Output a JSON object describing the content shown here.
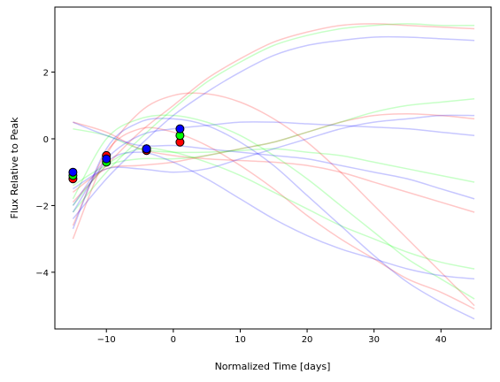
{
  "chart_data": {
    "type": "line",
    "xlabel": "Normalized Time [days]",
    "ylabel": "Flux Relative to Peak",
    "xlim": [
      -17.7,
      47.5
    ],
    "ylim": [
      -5.7,
      3.95
    ],
    "xticks": [
      {
        "value": -10,
        "label": "−10"
      },
      0,
      10,
      20,
      30,
      40
    ],
    "yticks": [
      {
        "value": -4,
        "label": "−4"
      },
      {
        "value": -2,
        "label": "−2"
      },
      0,
      2
    ],
    "line_alpha": 0.22,
    "x": [
      -15,
      -10,
      -5,
      0,
      5,
      10,
      15,
      20,
      25,
      30,
      35,
      40,
      45
    ],
    "series": [
      {
        "color": "#ff0000",
        "values": [
          -1.9,
          -0.8,
          0.2,
          1.0,
          1.8,
          2.4,
          2.9,
          3.2,
          3.4,
          3.45,
          3.4,
          3.35,
          3.3
        ]
      },
      {
        "color": "#ff0000",
        "values": [
          -3.0,
          -0.5,
          0.8,
          1.3,
          1.35,
          1.1,
          0.6,
          -0.1,
          -1.0,
          -2.0,
          -3.0,
          -4.0,
          -5.0
        ]
      },
      {
        "color": "#ff0000",
        "values": [
          -2.6,
          -0.4,
          0.3,
          0.2,
          -0.2,
          -0.8,
          -1.5,
          -2.3,
          -3.0,
          -3.6,
          -4.2,
          -4.6,
          -5.1
        ]
      },
      {
        "color": "#ff0000",
        "values": [
          -1.6,
          -0.9,
          -0.8,
          -0.7,
          -0.5,
          -0.3,
          -0.1,
          0.2,
          0.5,
          0.7,
          0.75,
          0.7,
          0.6
        ]
      },
      {
        "color": "#ff0000",
        "values": [
          0.5,
          0.2,
          -0.3,
          -0.5,
          -0.6,
          -0.65,
          -0.7,
          -0.8,
          -1.0,
          -1.3,
          -1.6,
          -1.9,
          -2.2
        ]
      },
      {
        "color": "#00ff00",
        "values": [
          -2.2,
          -1.0,
          0.0,
          0.9,
          1.7,
          2.3,
          2.8,
          3.1,
          3.3,
          3.4,
          3.45,
          3.4,
          3.4
        ]
      },
      {
        "color": "#00ff00",
        "values": [
          -1.8,
          0.0,
          0.6,
          0.7,
          0.5,
          0.1,
          -0.5,
          -1.2,
          -2.0,
          -2.8,
          -3.6,
          -4.2,
          -4.8
        ]
      },
      {
        "color": "#00ff00",
        "values": [
          -1.4,
          -0.8,
          -0.6,
          -0.6,
          -0.5,
          -0.3,
          -0.1,
          0.2,
          0.5,
          0.8,
          1.0,
          1.1,
          1.2
        ]
      },
      {
        "color": "#00ff00",
        "values": [
          0.3,
          0.1,
          -0.3,
          -0.4,
          -0.4,
          -0.35,
          -0.3,
          -0.4,
          -0.5,
          -0.7,
          -0.9,
          -1.1,
          -1.3
        ]
      },
      {
        "color": "#00ff00",
        "values": [
          -2.0,
          -0.8,
          -0.3,
          -0.4,
          -0.7,
          -1.1,
          -1.6,
          -2.1,
          -2.6,
          -3.0,
          -3.4,
          -3.7,
          -3.9
        ]
      },
      {
        "color": "#0000ff",
        "values": [
          -2.4,
          -1.2,
          -0.2,
          0.7,
          1.4,
          2.0,
          2.5,
          2.8,
          2.95,
          3.05,
          3.05,
          3.0,
          2.95
        ]
      },
      {
        "color": "#0000ff",
        "values": [
          -2.7,
          -0.3,
          0.5,
          0.6,
          0.4,
          -0.1,
          -0.8,
          -1.7,
          -2.6,
          -3.5,
          -4.3,
          -4.9,
          -5.4
        ]
      },
      {
        "color": "#0000ff",
        "values": [
          -1.5,
          -0.9,
          -0.9,
          -1.0,
          -0.9,
          -0.6,
          -0.3,
          0.0,
          0.3,
          0.5,
          0.6,
          0.7,
          0.7
        ]
      },
      {
        "color": "#0000ff",
        "values": [
          0.5,
          0.1,
          -0.2,
          -0.2,
          -0.3,
          -0.4,
          -0.5,
          -0.6,
          -0.8,
          -1.0,
          -1.2,
          -1.5,
          -1.8
        ]
      },
      {
        "color": "#0000ff",
        "values": [
          -2.0,
          -0.6,
          0.1,
          0.3,
          0.4,
          0.5,
          0.5,
          0.45,
          0.4,
          0.35,
          0.3,
          0.2,
          0.1
        ]
      },
      {
        "color": "#0000ff",
        "values": [
          -2.2,
          -0.7,
          -0.4,
          -0.7,
          -1.2,
          -1.8,
          -2.4,
          -2.9,
          -3.3,
          -3.6,
          -3.9,
          -4.1,
          -4.2
        ]
      }
    ],
    "scatter": [
      {
        "color": "#ff0000",
        "x": [
          -15,
          -10,
          -4,
          1
        ],
        "values": [
          -1.2,
          -0.5,
          -0.35,
          -0.1
        ]
      },
      {
        "color": "#00ff00",
        "x": [
          -15,
          -10,
          -4,
          1
        ],
        "values": [
          -1.1,
          -0.7,
          -0.3,
          0.1
        ]
      },
      {
        "color": "#0000ff",
        "x": [
          -15,
          -10,
          -4,
          1
        ],
        "values": [
          -1.0,
          -0.6,
          -0.3,
          0.3
        ]
      }
    ]
  }
}
